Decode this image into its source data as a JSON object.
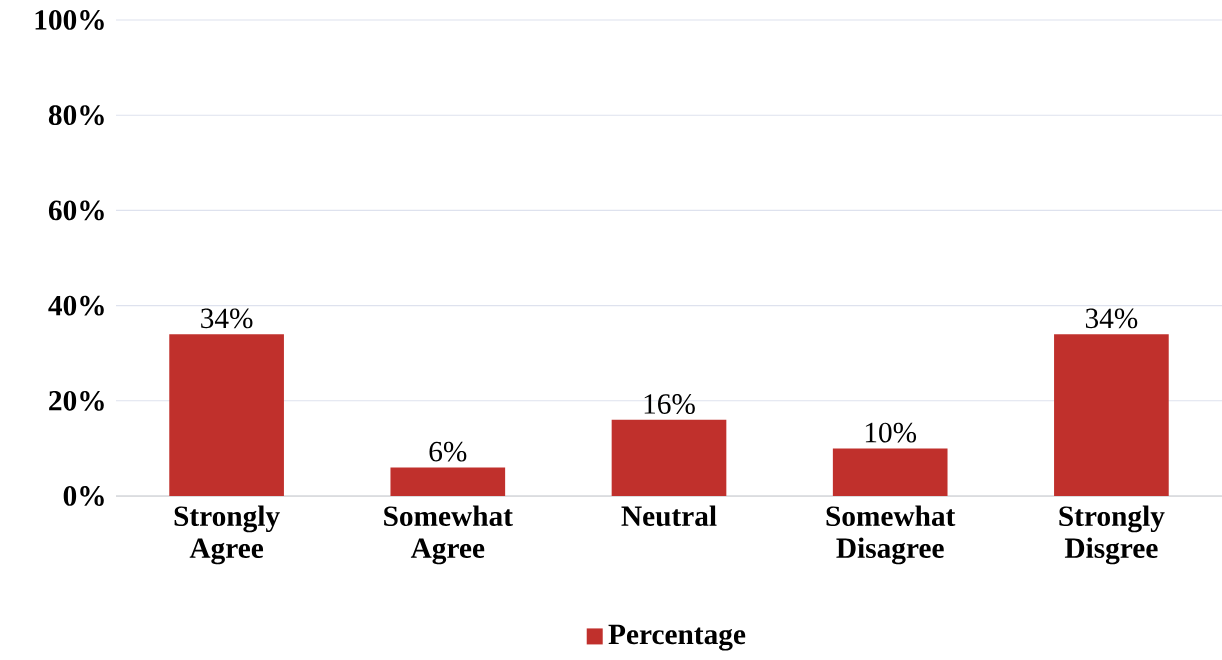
{
  "chart_data": {
    "type": "bar",
    "categories": [
      "Strongly Agree",
      "Somewhat Agree",
      "Neutral",
      "Somewhat Disagree",
      "Strongly Disgree"
    ],
    "series": [
      {
        "name": "Percentage",
        "color": "#c0302c",
        "values": [
          34,
          6,
          16,
          10,
          34
        ],
        "value_labels": [
          "34%",
          "6%",
          "16%",
          "10%",
          "34%"
        ]
      }
    ],
    "ylim": [
      0,
      100
    ],
    "yticks": [
      {
        "value": 0,
        "label": "0%"
      },
      {
        "value": 20,
        "label": "20%"
      },
      {
        "value": 40,
        "label": "40%"
      },
      {
        "value": 60,
        "label": "60%"
      },
      {
        "value": 80,
        "label": "80%"
      },
      {
        "value": 100,
        "label": "100%"
      }
    ],
    "grid": "y",
    "legend": "bottom"
  }
}
